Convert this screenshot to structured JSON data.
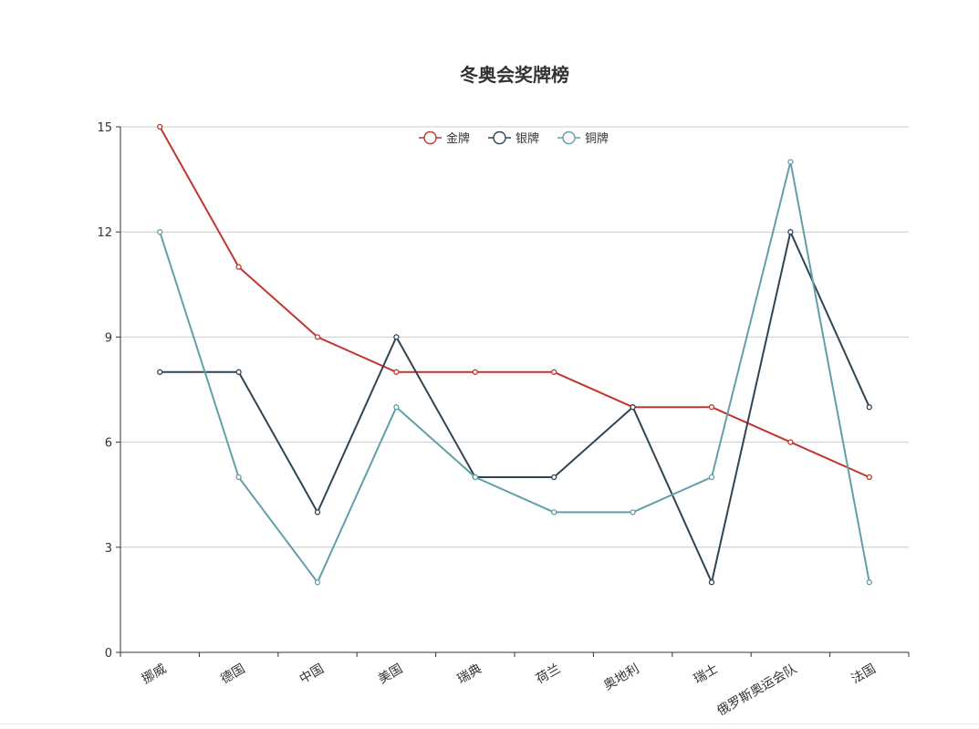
{
  "chart_data": {
    "type": "line",
    "title": "冬奥会奖牌榜",
    "categories": [
      "挪威",
      "德国",
      "中国",
      "美国",
      "瑞典",
      "荷兰",
      "奥地利",
      "瑞士",
      "俄罗斯奥运会队",
      "法国"
    ],
    "ylim": [
      0,
      15
    ],
    "yticks": [
      0,
      3,
      6,
      9,
      12,
      15
    ],
    "grid": true,
    "legend_position": "top-center",
    "series": [
      {
        "name": "金牌",
        "color": "#c23531",
        "values": [
          15,
          11,
          9,
          8,
          8,
          8,
          7,
          7,
          6,
          5
        ]
      },
      {
        "name": "银牌",
        "color": "#2f4554",
        "values": [
          8,
          8,
          4,
          9,
          5,
          5,
          7,
          2,
          12,
          7
        ]
      },
      {
        "name": "铜牌",
        "color": "#61a0a8",
        "values": [
          12,
          5,
          2,
          7,
          5,
          4,
          4,
          5,
          14,
          2
        ]
      }
    ]
  }
}
